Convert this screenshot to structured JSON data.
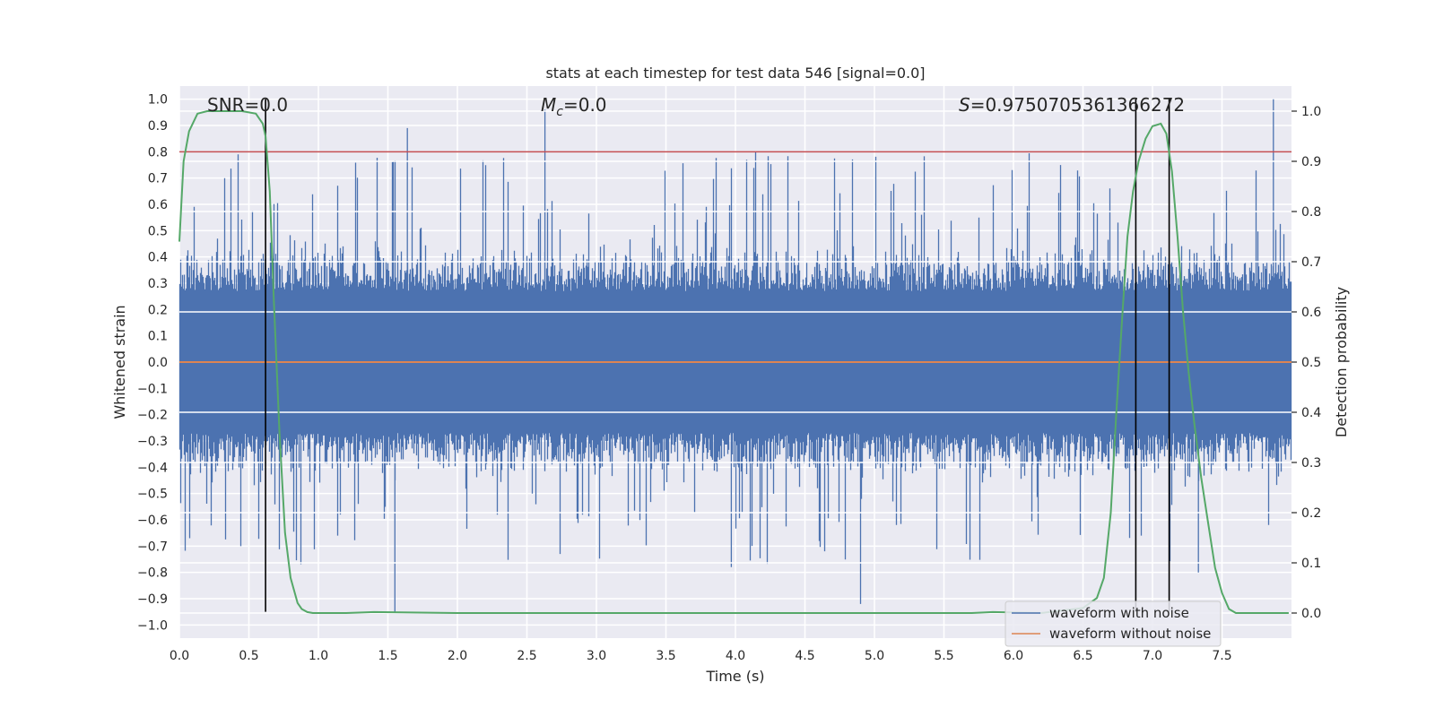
{
  "chart_data": {
    "type": "line",
    "title": "stats at each timestep for test data 546 [signal=0.0]",
    "xlabel": "Time (s)",
    "ylabel": "Whitened strain",
    "y2label": "Detection probability",
    "xlim": [
      0.0,
      8.0
    ],
    "ylim": [
      -1.05,
      1.05
    ],
    "y2lim": [
      -0.05,
      1.05
    ],
    "xticks": [
      "0.0",
      "0.5",
      "1.0",
      "1.5",
      "2.0",
      "2.5",
      "3.0",
      "3.5",
      "4.0",
      "4.5",
      "5.0",
      "5.5",
      "6.0",
      "6.5",
      "7.0",
      "7.5"
    ],
    "yticks": [
      "1.0",
      "0.9",
      "0.8",
      "0.7",
      "0.6",
      "0.5",
      "0.4",
      "0.3",
      "0.2",
      "0.1",
      "0.0",
      "-0.1",
      "-0.2",
      "-0.3",
      "-0.4",
      "-0.5",
      "-0.6",
      "-0.7",
      "-0.8",
      "-0.9",
      "-1.0"
    ],
    "y2ticks": [
      "1.0",
      "0.9",
      "0.8",
      "0.7",
      "0.6",
      "0.5",
      "0.4",
      "0.3",
      "0.2",
      "0.1",
      "0.0"
    ],
    "grid": true,
    "legend_position": "lower-right",
    "annotations": {
      "snr": "SNR=0.0",
      "mc_symbol": "M",
      "mc_sub": "c",
      "mc_value": "=0.0",
      "s_symbol": "S",
      "s_value": "=0.9750705361366272"
    },
    "threshold": 0.8,
    "vlines": [
      0.62,
      6.88,
      7.12
    ],
    "series": [
      {
        "name": "waveform with noise",
        "color": "#4c72b0",
        "kind": "noise",
        "peak_max": 1.0,
        "peak_min": -0.95
      },
      {
        "name": "waveform without noise",
        "color": "#dd8452",
        "kind": "flat",
        "value": 0.0
      },
      {
        "color": "#55a868",
        "kind": "probability",
        "x": [
          0.0,
          0.03,
          0.07,
          0.13,
          0.2,
          0.3,
          0.45,
          0.55,
          0.6,
          0.62,
          0.65,
          0.68,
          0.72,
          0.76,
          0.8,
          0.85,
          0.88,
          0.92,
          0.96,
          1.0,
          1.2,
          1.4,
          2.0,
          3.0,
          4.0,
          5.0,
          5.7,
          5.85,
          6.2,
          6.5,
          6.6,
          6.65,
          6.7,
          6.74,
          6.78,
          6.82,
          6.86,
          6.9,
          6.95,
          7.0,
          7.06,
          7.1,
          7.14,
          7.18,
          7.22,
          7.26,
          7.3,
          7.35,
          7.4,
          7.45,
          7.5,
          7.55,
          7.6,
          7.7,
          7.8,
          7.9,
          7.98
        ],
        "y": [
          0.74,
          0.9,
          0.96,
          0.995,
          1.0,
          1.0,
          1.0,
          0.995,
          0.975,
          0.95,
          0.84,
          0.62,
          0.36,
          0.16,
          0.07,
          0.02,
          0.008,
          0.002,
          0.0,
          0.0,
          0.0,
          0.002,
          0.0,
          0.0,
          0.0,
          0.0,
          0.0,
          0.002,
          0.0,
          0.01,
          0.03,
          0.07,
          0.2,
          0.4,
          0.58,
          0.75,
          0.84,
          0.9,
          0.945,
          0.97,
          0.975,
          0.955,
          0.88,
          0.75,
          0.6,
          0.48,
          0.38,
          0.27,
          0.18,
          0.09,
          0.04,
          0.008,
          0.0,
          0.0,
          0.0,
          0.0,
          0.0
        ]
      }
    ]
  }
}
